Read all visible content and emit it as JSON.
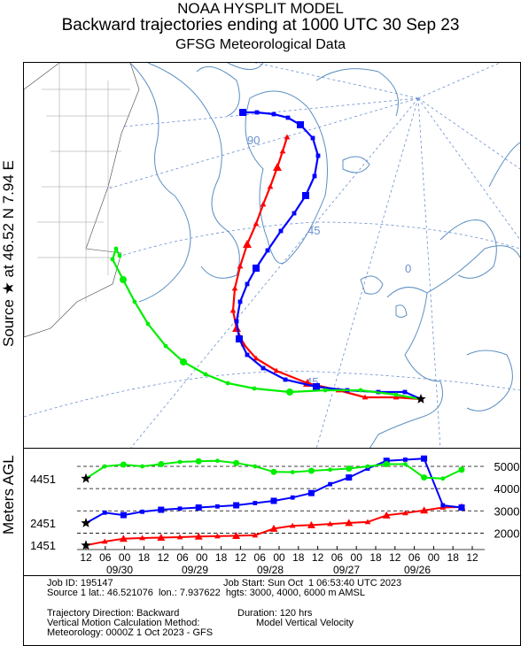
{
  "header": {
    "line1": "NOAA HYSPLIT MODEL",
    "line2": "Backward trajectories ending at 1000 UTC 30 Sep 23",
    "line3": "GFSG Meteorological Data"
  },
  "side_labels": {
    "source": "Source ★ at    46.52 N    7.94 E",
    "meters": "Meters AGL"
  },
  "map": {
    "grid_labels": [
      "90",
      "45",
      "0",
      "45"
    ],
    "colors": {
      "red": "#ff0000",
      "blue": "#0000ff",
      "green": "#00ee00",
      "land": "#5b8fc0",
      "grid": "#6b8fcf"
    }
  },
  "chart_data": {
    "type": "line",
    "title": "Backward trajectories ending at 1000 UTC 30 Sep 23",
    "ylabel": "Meters AGL",
    "ylim": [
      0,
      5500
    ],
    "y_ticks": [
      2000,
      3000,
      4000,
      5000
    ],
    "start_heights": [
      "4451",
      "2451",
      "1451"
    ],
    "x_ticks": [
      "12",
      "06",
      "00",
      "18",
      "12",
      "06",
      "00",
      "18",
      "12",
      "06",
      "00",
      "18",
      "12",
      "06",
      "00",
      "18",
      "12",
      "06",
      "00",
      "18",
      "12"
    ],
    "date_labels": [
      "09/30",
      "09/29",
      "09/28",
      "09/27",
      "09/26"
    ],
    "x_hours_back": [
      0,
      6,
      12,
      18,
      24,
      30,
      36,
      42,
      48,
      54,
      60,
      66,
      72,
      78,
      84,
      90,
      96,
      102,
      108,
      114,
      120
    ],
    "series": [
      {
        "color": "#ff0000",
        "values": [
          1451,
          1620,
          1750,
          1780,
          1800,
          1820,
          1850,
          1860,
          1880,
          1900,
          2200,
          2330,
          2360,
          2410,
          2460,
          2500,
          2800,
          2900,
          3020,
          3150,
          3170
        ]
      },
      {
        "color": "#0000ff",
        "values": [
          2451,
          2920,
          2810,
          2960,
          3050,
          3100,
          3150,
          3200,
          3250,
          3350,
          3450,
          3600,
          3800,
          4200,
          4500,
          4900,
          5250,
          5300,
          5350,
          3250,
          3150
        ]
      },
      {
        "color": "#00ee00",
        "values": [
          4451,
          5000,
          5080,
          5000,
          5100,
          5200,
          5230,
          5250,
          5150,
          5000,
          4750,
          4740,
          4800,
          4850,
          4900,
          5000,
          5100,
          5100,
          4500,
          4450,
          4850
        ]
      }
    ]
  },
  "info": {
    "job_id": "Job ID: 195147",
    "job_start": "Job Start: Sun Oct  1 06:53:40 UTC 2023",
    "source": "Source 1 lat.: 46.521076  lon.: 7.937622  hgts: 3000, 4000, 6000 m AMSL",
    "direction": "Trajectory Direction: Backward",
    "duration": "Duration: 120 hrs",
    "vertical": "Vertical Motion Calculation Method:",
    "vertical_value": "Model Vertical Velocity",
    "meteo": "Meteorology: 0000Z 1 Oct 2023 - GFS"
  }
}
